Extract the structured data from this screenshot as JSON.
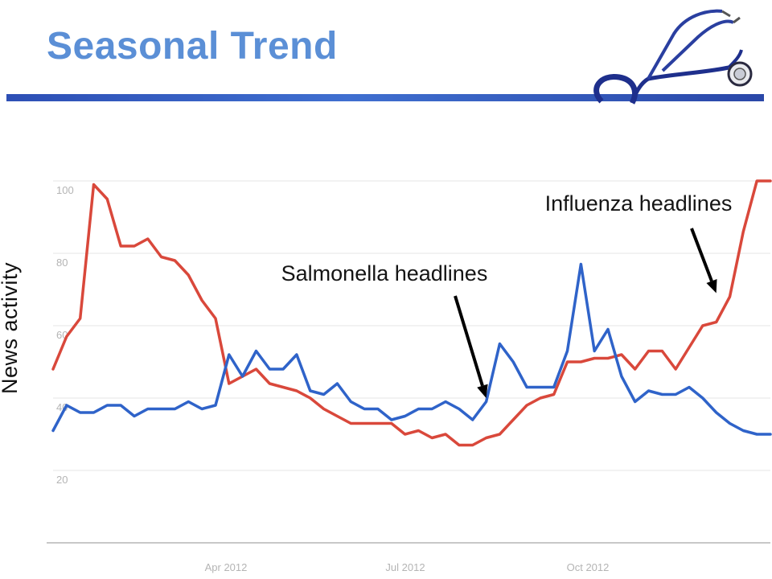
{
  "slide": {
    "title": "Seasonal Trend",
    "icon": "stethoscope-icon",
    "rule_color": "#2d4fb5"
  },
  "chart_data": {
    "type": "line",
    "ylabel": "News activity",
    "xlabel": "",
    "ylim": [
      0,
      100
    ],
    "y_ticks": [
      20,
      40,
      60,
      80,
      100
    ],
    "x_ticks": [
      "Apr 2012",
      "Jul 2012",
      "Oct 2012"
    ],
    "grid": true,
    "x": [
      0,
      1,
      2,
      3,
      4,
      5,
      6,
      7,
      8,
      9,
      10,
      11,
      12,
      13,
      14,
      15,
      16,
      17,
      18,
      19,
      20,
      21,
      22,
      23,
      24,
      25,
      26,
      27,
      28,
      29,
      30,
      31,
      32,
      33,
      34,
      35,
      36,
      37,
      38,
      39,
      40,
      41,
      42,
      43,
      44,
      45,
      46,
      47,
      48,
      49,
      50,
      51,
      52,
      53
    ],
    "series": [
      {
        "color": "#d9483b",
        "values": [
          48,
          57,
          62,
          99,
          95,
          82,
          82,
          84,
          79,
          78,
          74,
          67,
          62,
          44,
          46,
          48,
          44,
          43,
          42,
          40,
          37,
          35,
          33,
          33,
          33,
          33,
          30,
          31,
          29,
          30,
          27,
          27,
          29,
          30,
          34,
          38,
          40,
          41,
          50,
          50,
          51,
          51,
          52,
          48,
          53,
          53,
          48,
          54,
          60,
          61,
          68,
          86,
          100,
          100
        ]
      },
      {
        "color": "#2f63c9",
        "values": [
          31,
          38,
          36,
          36,
          38,
          38,
          35,
          37,
          37,
          37,
          39,
          37,
          38,
          52,
          46,
          53,
          48,
          48,
          52,
          42,
          41,
          44,
          39,
          37,
          37,
          34,
          35,
          37,
          37,
          39,
          37,
          34,
          39,
          55,
          50,
          43,
          43,
          43,
          53,
          77,
          53,
          59,
          46,
          39,
          42,
          41,
          41,
          43,
          40,
          36,
          33,
          31,
          30,
          30
        ]
      }
    ],
    "annotations": [
      {
        "text": "Salmonella headlines",
        "target_x": 32,
        "target_y": 40
      },
      {
        "text": "Influenza headlines",
        "target_x": 49,
        "target_y": 69
      }
    ]
  }
}
